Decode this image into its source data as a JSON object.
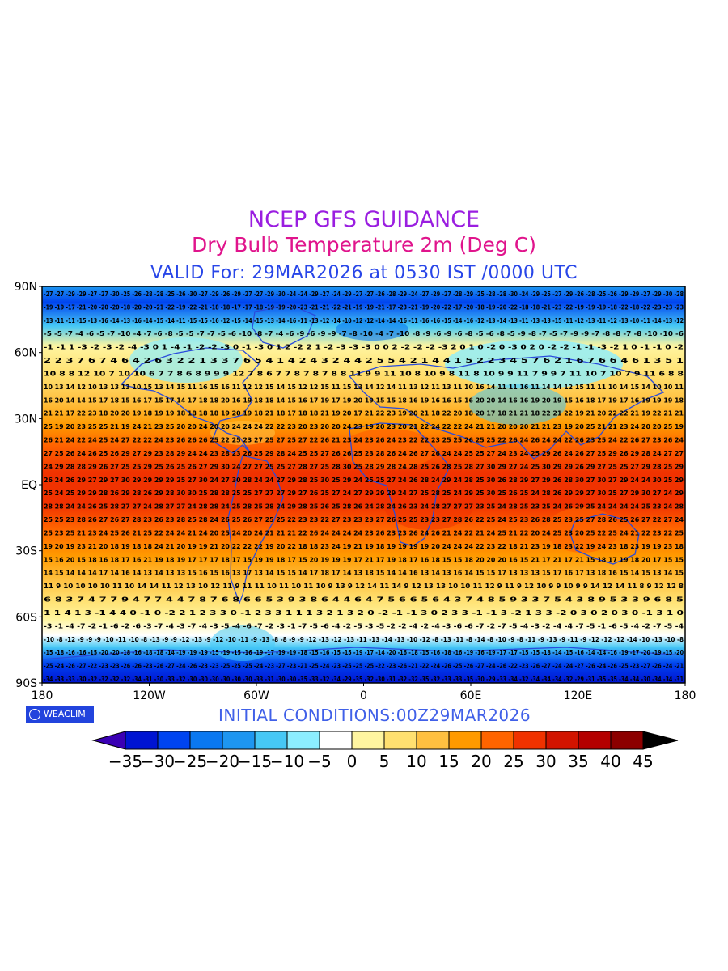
{
  "header": {
    "title": "NCEP GFS GUIDANCE",
    "subtitle": "Dry Bulb Temperature 2m (Deg C)",
    "valid": "VALID For: 29MAR2026 at 0530 IST /0000 UTC"
  },
  "map": {
    "projection": "cylindrical lat-lon",
    "lat_range": [
      -90,
      90
    ],
    "lon_range": [
      -180,
      180
    ],
    "lat_labels": [
      "90N",
      "60N",
      "30N",
      "EQ",
      "30S",
      "60S",
      "90S"
    ],
    "lon_labels": [
      "180",
      "120W",
      "60W",
      "0",
      "60E",
      "120E",
      "180"
    ],
    "coastline_color": "#2a4bdc",
    "station_value_color": "#000000"
  },
  "colorbar": {
    "levels": [
      -35,
      -30,
      -25,
      -20,
      -15,
      -10,
      -5,
      0,
      5,
      10,
      15,
      20,
      25,
      30,
      35,
      40,
      45
    ],
    "labels": [
      "-35",
      "-30",
      "-25",
      "-20",
      "-15",
      "-10",
      "-5",
      "0",
      "5",
      "10",
      "15",
      "20",
      "25",
      "30",
      "35",
      "40",
      "45"
    ],
    "colors": [
      "#3a00b4",
      "#0014d2",
      "#0044f0",
      "#0a78f0",
      "#1e96f0",
      "#46c8f5",
      "#8ceeff",
      "#ffffff",
      "#fff5a0",
      "#ffe070",
      "#ffc040",
      "#ff9a00",
      "#ff6400",
      "#f03200",
      "#d21400",
      "#b40000",
      "#8c0000",
      "#000000"
    ]
  },
  "footer": {
    "logo": "WEACLIM",
    "initial_conditions": "INITIAL CONDITIONS:00Z29MAR2026"
  }
}
